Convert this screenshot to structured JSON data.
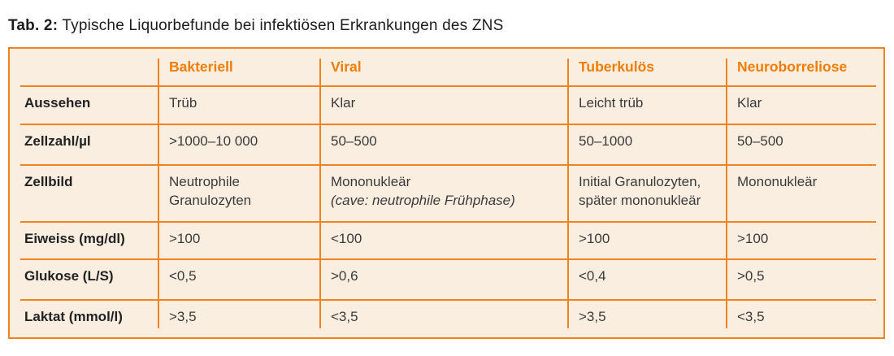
{
  "title": {
    "label": "Tab. 2:",
    "text": "Typische Liquorbefunde bei infektiösen Erkrankungen des ZNS"
  },
  "table": {
    "columns": [
      "",
      "Bakteriell",
      "Viral",
      "Tuberkulös",
      "Neuroborreliose"
    ],
    "rows": [
      {
        "label": "Aussehen",
        "cells": [
          {
            "value": "Trüb"
          },
          {
            "value": "Klar"
          },
          {
            "value": "Leicht trüb"
          },
          {
            "value": "Klar"
          }
        ]
      },
      {
        "label": "Zellzahl/µl",
        "cells": [
          {
            "value": ">1000–10 000"
          },
          {
            "value": "50–500"
          },
          {
            "value": "50–1000"
          },
          {
            "value": "50–500"
          }
        ]
      },
      {
        "label": "Zellbild",
        "cells": [
          {
            "value": "Neutrophile Granulozyten"
          },
          {
            "value": "Mononukleär",
            "note": "(cave: neutrophile Frühphase)"
          },
          {
            "value": "Initial Granulozyten, später mononukleär"
          },
          {
            "value": "Mononukleär"
          }
        ]
      },
      {
        "label": "Eiweiss (mg/dl)",
        "cells": [
          {
            "value": ">100"
          },
          {
            "value": "<100"
          },
          {
            "value": ">100"
          },
          {
            "value": ">100"
          }
        ]
      },
      {
        "label": "Glukose (L/S)",
        "cells": [
          {
            "value": "<0,5"
          },
          {
            "value": ">0,6"
          },
          {
            "value": "<0,4"
          },
          {
            "value": ">0,5"
          }
        ]
      },
      {
        "label": "Laktat (mmol/l)",
        "cells": [
          {
            "value": ">3,5"
          },
          {
            "value": "<3,5"
          },
          {
            "value": ">3,5"
          },
          {
            "value": "<3,5"
          }
        ]
      }
    ]
  },
  "colors": {
    "accent_orange": "#f07d00",
    "line_orange": "#f0831f",
    "table_background": "#faeee1",
    "body_text": "#3a3a3a",
    "title_text": "#1c1c1c",
    "page_background": "#ffffff"
  }
}
